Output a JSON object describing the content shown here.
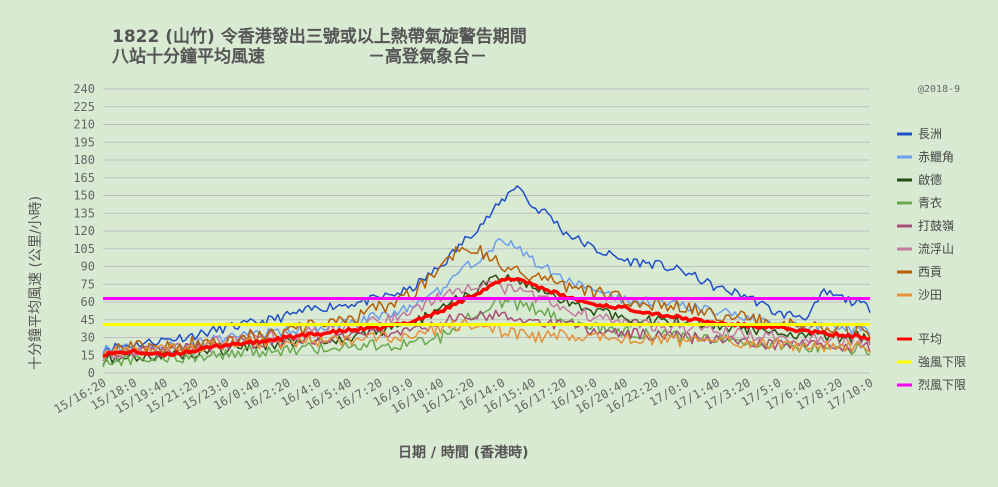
{
  "chart_data": {
    "type": "line",
    "title_line1": "1822 (山竹)  令香港發出三號或以上熱帶氣旋警告期間",
    "title_line2": "八站十分鐘平均風速",
    "title_org": "－高登氣象台－",
    "credit": "@2018-9",
    "xlabel": "日期 / 時間 (香港時)",
    "ylabel": "十分鐘平均風速 (公里/小時)",
    "ylim": [
      0,
      240
    ],
    "yticks": [
      "0",
      "15",
      "30",
      "45",
      "60",
      "75",
      "90",
      "105",
      "120",
      "135",
      "150",
      "165",
      "180",
      "195",
      "210",
      "225",
      "240"
    ],
    "x_tick_labels": [
      "15/16:20",
      "15/18:0",
      "15/19:40",
      "15/21:20",
      "15/23:0",
      "16/0:40",
      "16/2:20",
      "16/4:0",
      "16/5:40",
      "16/7:20",
      "16/9:0",
      "16/10:40",
      "16/12:20",
      "16/14:0",
      "16/15:40",
      "16/17:20",
      "16/19:0",
      "16/20:40",
      "16/22:20",
      "17/0:0",
      "17/1:40",
      "17/3:20",
      "17/5:0",
      "17/6:40",
      "17/8:20",
      "17/10:0"
    ],
    "num_points": 251,
    "legend_position": "right",
    "grid": true,
    "thresholds": [
      {
        "name": "強風下限",
        "value": 41,
        "color": "#ffff00"
      },
      {
        "name": "烈風下限",
        "value": 63,
        "color": "#ff00ff"
      }
    ],
    "series": [
      {
        "name": "長洲",
        "color": "#1f4fc8",
        "keypoints": [
          [
            0,
            21
          ],
          [
            10,
            24
          ],
          [
            20,
            28
          ],
          [
            30,
            32
          ],
          [
            40,
            38
          ],
          [
            55,
            45
          ],
          [
            70,
            55
          ],
          [
            85,
            60
          ],
          [
            100,
            70
          ],
          [
            110,
            90
          ],
          [
            120,
            118
          ],
          [
            125,
            130
          ],
          [
            130,
            145
          ],
          [
            135,
            160
          ],
          [
            140,
            140
          ],
          [
            145,
            135
          ],
          [
            150,
            120
          ],
          [
            160,
            105
          ],
          [
            170,
            95
          ],
          [
            180,
            92
          ],
          [
            190,
            85
          ],
          [
            200,
            72
          ],
          [
            210,
            65
          ],
          [
            220,
            50
          ],
          [
            230,
            48
          ],
          [
            235,
            68
          ],
          [
            240,
            64
          ],
          [
            245,
            60
          ],
          [
            250,
            55
          ]
        ],
        "noise": 4,
        "seed": 11
      },
      {
        "name": "赤鱲角",
        "color": "#6d9eeb",
        "keypoints": [
          [
            0,
            20
          ],
          [
            20,
            22
          ],
          [
            40,
            30
          ],
          [
            60,
            36
          ],
          [
            80,
            42
          ],
          [
            100,
            55
          ],
          [
            110,
            70
          ],
          [
            118,
            90
          ],
          [
            125,
            100
          ],
          [
            130,
            112
          ],
          [
            135,
            105
          ],
          [
            140,
            95
          ],
          [
            150,
            80
          ],
          [
            160,
            70
          ],
          [
            170,
            62
          ],
          [
            180,
            60
          ],
          [
            200,
            52
          ],
          [
            220,
            42
          ],
          [
            240,
            38
          ],
          [
            250,
            36
          ]
        ],
        "noise": 4,
        "seed": 22
      },
      {
        "name": "啟德",
        "color": "#274e13",
        "keypoints": [
          [
            0,
            12
          ],
          [
            20,
            15
          ],
          [
            40,
            20
          ],
          [
            60,
            26
          ],
          [
            80,
            30
          ],
          [
            100,
            40
          ],
          [
            110,
            55
          ],
          [
            120,
            70
          ],
          [
            130,
            80
          ],
          [
            140,
            72
          ],
          [
            150,
            62
          ],
          [
            160,
            52
          ],
          [
            180,
            44
          ],
          [
            200,
            40
          ],
          [
            220,
            35
          ],
          [
            240,
            30
          ],
          [
            250,
            30
          ]
        ],
        "noise": 5,
        "seed": 33
      },
      {
        "name": "青衣",
        "color": "#6aa84f",
        "keypoints": [
          [
            0,
            10
          ],
          [
            20,
            12
          ],
          [
            40,
            16
          ],
          [
            60,
            20
          ],
          [
            80,
            22
          ],
          [
            100,
            25
          ],
          [
            110,
            30
          ],
          [
            120,
            50
          ],
          [
            130,
            60
          ],
          [
            140,
            55
          ],
          [
            150,
            45
          ],
          [
            160,
            38
          ],
          [
            180,
            32
          ],
          [
            200,
            28
          ],
          [
            220,
            24
          ],
          [
            240,
            20
          ],
          [
            250,
            20
          ]
        ],
        "noise": 5,
        "seed": 44
      },
      {
        "name": "打鼓嶺",
        "color": "#a64d79",
        "keypoints": [
          [
            0,
            18
          ],
          [
            20,
            18
          ],
          [
            40,
            24
          ],
          [
            60,
            28
          ],
          [
            80,
            30
          ],
          [
            100,
            35
          ],
          [
            110,
            42
          ],
          [
            120,
            50
          ],
          [
            130,
            48
          ],
          [
            140,
            45
          ],
          [
            150,
            40
          ],
          [
            160,
            36
          ],
          [
            180,
            32
          ],
          [
            200,
            28
          ],
          [
            220,
            24
          ],
          [
            240,
            22
          ],
          [
            250,
            22
          ]
        ],
        "noise": 5,
        "seed": 55
      },
      {
        "name": "流浮山",
        "color": "#c27ba0",
        "keypoints": [
          [
            0,
            15
          ],
          [
            20,
            20
          ],
          [
            40,
            28
          ],
          [
            60,
            32
          ],
          [
            80,
            38
          ],
          [
            100,
            50
          ],
          [
            110,
            65
          ],
          [
            120,
            75
          ],
          [
            130,
            72
          ],
          [
            140,
            65
          ],
          [
            150,
            55
          ],
          [
            160,
            48
          ],
          [
            180,
            40
          ],
          [
            200,
            35
          ],
          [
            220,
            30
          ],
          [
            240,
            28
          ],
          [
            250,
            28
          ]
        ],
        "noise": 5,
        "seed": 66
      },
      {
        "name": "西貢",
        "color": "#b45f06",
        "keypoints": [
          [
            0,
            20
          ],
          [
            20,
            22
          ],
          [
            40,
            28
          ],
          [
            60,
            35
          ],
          [
            80,
            45
          ],
          [
            100,
            65
          ],
          [
            110,
            90
          ],
          [
            118,
            110
          ],
          [
            125,
            100
          ],
          [
            130,
            90
          ],
          [
            140,
            82
          ],
          [
            150,
            75
          ],
          [
            160,
            68
          ],
          [
            170,
            62
          ],
          [
            180,
            58
          ],
          [
            200,
            50
          ],
          [
            220,
            42
          ],
          [
            240,
            36
          ],
          [
            250,
            35
          ]
        ],
        "noise": 6,
        "seed": 77
      },
      {
        "name": "沙田",
        "color": "#e69138",
        "keypoints": [
          [
            0,
            18
          ],
          [
            20,
            20
          ],
          [
            40,
            24
          ],
          [
            60,
            26
          ],
          [
            80,
            28
          ],
          [
            100,
            32
          ],
          [
            110,
            38
          ],
          [
            120,
            42
          ],
          [
            125,
            40
          ],
          [
            130,
            35
          ],
          [
            140,
            30
          ],
          [
            150,
            32
          ],
          [
            160,
            30
          ],
          [
            180,
            28
          ],
          [
            200,
            26
          ],
          [
            220,
            24
          ],
          [
            240,
            22
          ],
          [
            250,
            22
          ]
        ],
        "noise": 5,
        "seed": 88
      },
      {
        "name": "平均",
        "color": "#ff0000",
        "keypoints": [
          [
            0,
            16
          ],
          [
            10,
            18
          ],
          [
            20,
            15
          ],
          [
            30,
            19
          ],
          [
            40,
            24
          ],
          [
            50,
            26
          ],
          [
            60,
            30
          ],
          [
            70,
            33
          ],
          [
            80,
            36
          ],
          [
            90,
            38
          ],
          [
            100,
            43
          ],
          [
            110,
            52
          ],
          [
            120,
            65
          ],
          [
            130,
            78
          ],
          [
            135,
            80
          ],
          [
            140,
            75
          ],
          [
            150,
            65
          ],
          [
            160,
            58
          ],
          [
            170,
            55
          ],
          [
            180,
            50
          ],
          [
            190,
            46
          ],
          [
            200,
            42
          ],
          [
            210,
            40
          ],
          [
            220,
            38
          ],
          [
            230,
            35
          ],
          [
            240,
            32
          ],
          [
            250,
            30
          ]
        ],
        "noise": 1.5,
        "seed": 99,
        "bold": true
      }
    ]
  }
}
